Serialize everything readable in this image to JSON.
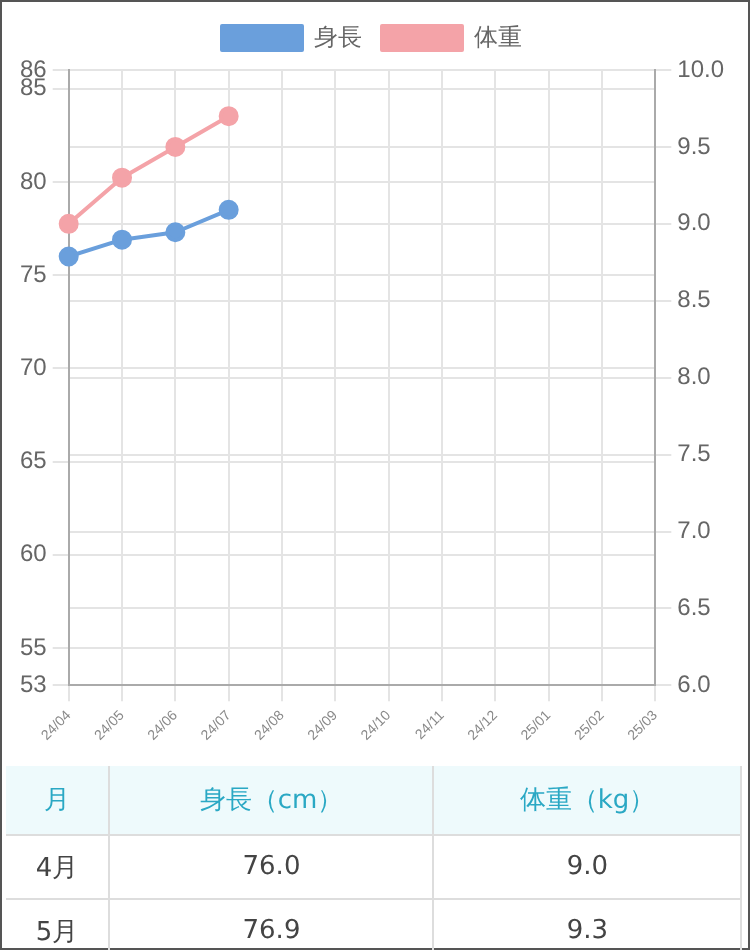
{
  "chart_data": {
    "type": "line",
    "categories": [
      "24/04",
      "24/05",
      "24/06",
      "24/07",
      "24/08",
      "24/09",
      "24/10",
      "24/11",
      "24/12",
      "25/01",
      "25/02",
      "25/03"
    ],
    "series": [
      {
        "name": "身長",
        "color": "#6a9fdc",
        "values": [
          76.0,
          76.9,
          77.3,
          78.5,
          null,
          null,
          null,
          null,
          null,
          null,
          null,
          null
        ]
      },
      {
        "name": "体重",
        "color": "#f4a3a8",
        "axis": "y2",
        "values": [
          9.0,
          9.3,
          9.5,
          9.7,
          null,
          null,
          null,
          null,
          null,
          null,
          null,
          null
        ]
      }
    ],
    "ylim": [
      53,
      86
    ],
    "yticks": [
      53,
      55,
      60,
      65,
      70,
      75,
      80,
      85,
      86
    ],
    "y2lim": [
      6,
      10
    ],
    "y2ticks": [
      {
        "value": 6,
        "label": "6.0"
      },
      6.5,
      {
        "value": 7,
        "label": "7.0"
      },
      7.5,
      {
        "value": 8,
        "label": "8.0"
      },
      8.5,
      {
        "value": 9,
        "label": "9.0"
      },
      9.5,
      {
        "value": 10,
        "label": "10.0"
      }
    ],
    "annotations": [
      "月",
      "身長（cm）",
      "体重（kg）",
      "4月",
      "76.0",
      "9.0",
      "5月",
      "76.9",
      "9.3"
    ],
    "grid": true,
    "legend": "top",
    "marker": "circle",
    "line_style": "solid"
  }
}
